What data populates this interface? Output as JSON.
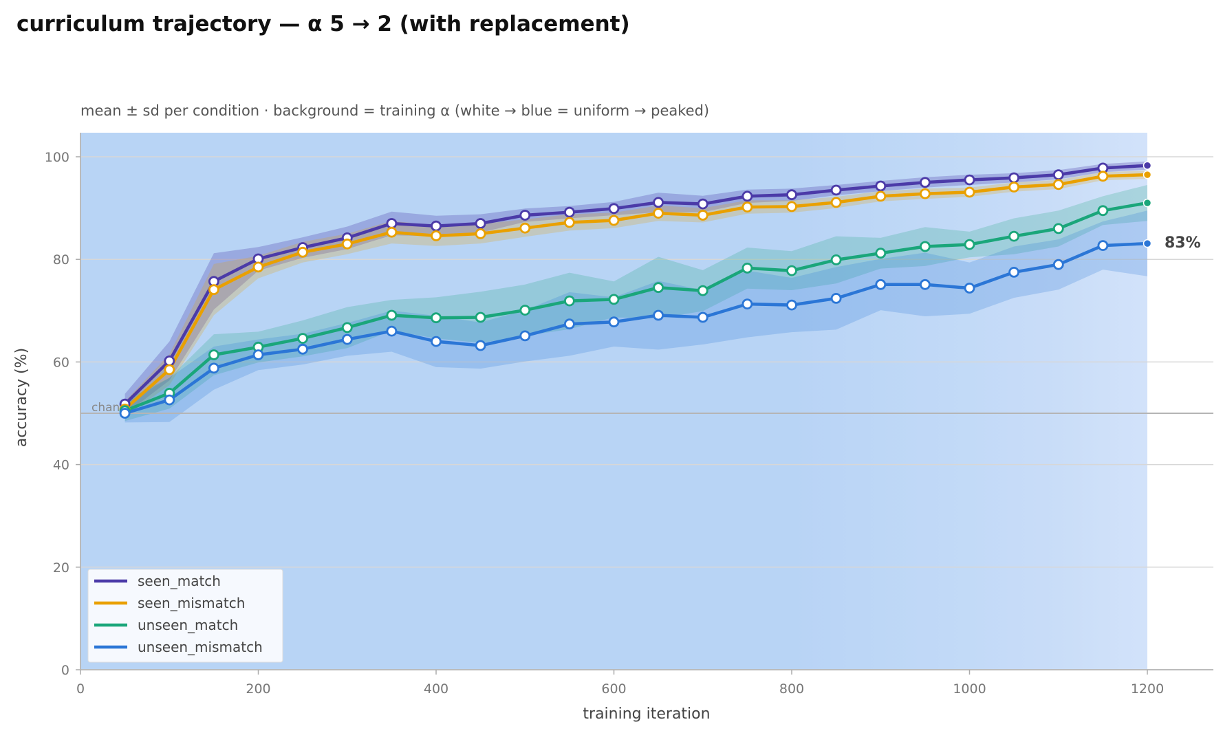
{
  "chart_data": {
    "type": "line",
    "title": "curriculum trajectory — α 5 → 2 (with replacement)",
    "subtitle": "mean ± sd per condition · background = training α (white → blue = uniform → peaked)",
    "xlabel": "training iteration",
    "ylabel": "accuracy (%)",
    "xlim": [
      0,
      1270
    ],
    "ylim": [
      0,
      105
    ],
    "xticks": [
      0,
      200,
      400,
      600,
      800,
      1000,
      1200
    ],
    "yticks": [
      0,
      20,
      40,
      60,
      80,
      100
    ],
    "grid": "horizontal",
    "legend_position": "lower-left",
    "reference_line": {
      "y": 50,
      "label": "chance"
    },
    "end_label": "83%",
    "background_alpha": {
      "x": [
        0,
        50,
        100,
        150,
        200,
        250,
        300,
        350,
        400,
        450,
        500,
        550,
        600,
        650,
        700,
        750,
        800,
        850,
        900,
        950,
        1000,
        1050,
        1100,
        1150,
        1200
      ],
      "alpha": [
        5,
        5,
        5,
        5,
        5,
        5,
        5,
        5,
        5,
        5,
        5,
        5,
        5,
        5,
        5,
        5,
        5,
        4.7,
        4.4,
        4.1,
        3.8,
        3.4,
        3.0,
        2.5,
        2.0
      ]
    },
    "x": [
      50,
      100,
      150,
      200,
      250,
      300,
      350,
      400,
      450,
      500,
      550,
      600,
      650,
      700,
      750,
      800,
      850,
      900,
      950,
      1000,
      1050,
      1100,
      1150,
      1200
    ],
    "series": [
      {
        "name": "seen_match",
        "color": "#4b3aa8",
        "values": [
          51.8,
          60.2,
          75.7,
          80.1,
          82.3,
          84.2,
          87.0,
          86.5,
          87.0,
          88.6,
          89.2,
          89.9,
          91.1,
          90.8,
          92.3,
          92.6,
          93.5,
          94.3,
          95.0,
          95.5,
          95.9,
          96.5,
          97.8,
          98.3
        ],
        "sd": [
          2.0,
          3.8,
          5.5,
          2.3,
          2.0,
          2.2,
          2.3,
          2.0,
          1.8,
          1.3,
          1.2,
          1.3,
          1.9,
          1.6,
          1.3,
          1.2,
          1.0,
          1.0,
          1.0,
          1.0,
          0.9,
          0.9,
          0.8,
          0.8
        ]
      },
      {
        "name": "seen_mismatch",
        "color": "#e9a000",
        "values": [
          50.8,
          58.5,
          74.1,
          78.5,
          81.4,
          83.0,
          85.3,
          84.6,
          85.0,
          86.1,
          87.2,
          87.6,
          89.0,
          88.6,
          90.2,
          90.3,
          91.1,
          92.3,
          92.8,
          93.1,
          94.1,
          94.6,
          96.2,
          96.5
        ],
        "sd": [
          1.5,
          3.0,
          5.0,
          2.2,
          2.0,
          2.0,
          2.2,
          2.0,
          1.9,
          1.7,
          1.6,
          1.5,
          1.5,
          1.4,
          1.3,
          1.2,
          1.1,
          1.0,
          1.0,
          0.9,
          0.9,
          0.9,
          0.8,
          0.8
        ]
      },
      {
        "name": "unseen_match",
        "color": "#1aa67a",
        "values": [
          50.5,
          53.9,
          61.4,
          62.9,
          64.6,
          66.7,
          69.1,
          68.6,
          68.7,
          70.1,
          71.9,
          72.2,
          74.5,
          73.9,
          78.3,
          77.8,
          79.9,
          81.2,
          82.5,
          82.9,
          84.5,
          86.0,
          89.5,
          91.0
        ],
        "sd": [
          2.0,
          3.0,
          4.0,
          3.0,
          3.5,
          4.0,
          3.0,
          4.0,
          5.0,
          5.0,
          5.5,
          3.5,
          6.0,
          4.0,
          4.0,
          3.8,
          4.6,
          3.0,
          3.8,
          2.5,
          3.5,
          3.5,
          2.8,
          3.5
        ]
      },
      {
        "name": "unseen_mismatch",
        "color": "#2b76d6",
        "values": [
          50.0,
          52.6,
          58.8,
          61.4,
          62.5,
          64.4,
          66.0,
          64.0,
          63.2,
          65.1,
          67.4,
          67.8,
          69.1,
          68.7,
          71.3,
          71.1,
          72.4,
          75.1,
          75.1,
          74.4,
          77.5,
          79.0,
          82.7,
          83.1
        ],
        "sd": [
          1.8,
          4.3,
          4.2,
          3.0,
          3.0,
          3.2,
          4.0,
          5.0,
          4.5,
          5.0,
          6.2,
          4.8,
          6.7,
          5.3,
          6.5,
          5.3,
          6.1,
          5.0,
          6.2,
          5.0,
          5.0,
          4.9,
          4.7,
          6.4
        ]
      }
    ]
  }
}
